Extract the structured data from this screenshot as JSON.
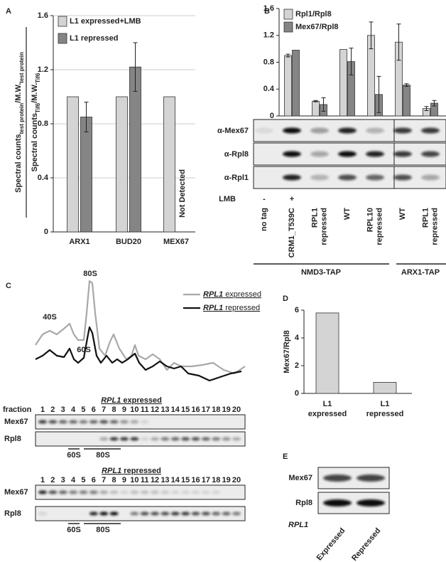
{
  "panel_labels": [
    "A",
    "B",
    "C",
    "D",
    "E"
  ],
  "chart_data": [
    {
      "type": "bar",
      "ylabel": {
        "numerator": [
          "Spectral counts",
          "test protein",
          "/M.W.",
          "test protein"
        ],
        "denominator": [
          "Spectral counts",
          "Tif6",
          "/M.W.",
          "Tif6"
        ]
      },
      "categories": [
        "ARX1",
        "BUD20",
        "MEX67"
      ],
      "series": [
        {
          "name": "L1 expressed+LMB",
          "color": "#d4d4d4",
          "values": [
            1,
            1,
            1
          ],
          "errors": [
            null,
            null,
            null
          ]
        },
        {
          "name": "L1 repressed",
          "color": "#858585",
          "values": [
            0.85,
            1.22,
            null
          ],
          "errors": [
            0.11,
            0.18,
            null
          ]
        }
      ],
      "annotation": "Not Detected",
      "ylim": [
        0,
        1.6
      ],
      "yticks": [
        0,
        0.4,
        0.8,
        1.2,
        1.6
      ],
      "grid": true
    },
    {
      "type": "bar",
      "categories": [
        "no tag",
        "CRM1_T539C",
        "RPL1 repressed",
        "WT",
        "RPL10 repressed",
        "WT",
        "RPL1 repressed"
      ],
      "series": [
        {
          "name": "Rpl1/Rpl8",
          "color": "#d4d4d4",
          "values": [
            null,
            0.9,
            0.22,
            0.99,
            1.2,
            1.1,
            0.11
          ],
          "errors": [
            null,
            0.02,
            0.01,
            null,
            0.2,
            0.27,
            0.03
          ]
        },
        {
          "name": "Mex67/Rpl8",
          "color": "#858585",
          "values": [
            null,
            0.98,
            0.17,
            0.81,
            0.32,
            0.46,
            0.19
          ],
          "errors": [
            null,
            null,
            0.1,
            0.2,
            0.27,
            0.02,
            0.04
          ]
        }
      ],
      "ylim": [
        0,
        1.6
      ],
      "yticks": [
        0,
        0.4,
        0.8,
        1.2,
        1.6
      ],
      "grid": false
    },
    {
      "type": "bar",
      "ylabel": "Mex67/Rpl8",
      "categories": [
        "L1 expressed",
        "L1 repressed"
      ],
      "values": [
        5.8,
        0.8
      ],
      "color": "#d4d4d4",
      "ylim": [
        0,
        6
      ],
      "yticks": [
        0,
        2,
        4,
        6
      ],
      "grid": false
    }
  ],
  "panel_b": {
    "rows": [
      "α-Mex67",
      "α-Rpl8",
      "α-Rpl1"
    ],
    "lmb_label": "LMB",
    "lmb": [
      "-",
      "+"
    ],
    "groups": [
      "NMD3-TAP",
      "ARX1-TAP"
    ]
  },
  "panel_c": {
    "peaks": [
      "40S",
      "60S",
      "80S"
    ],
    "legend": [
      {
        "gene": "RPL1",
        "state": "expressed"
      },
      {
        "gene": "RPL1",
        "state": "repressed"
      }
    ],
    "fraction_label": "fraction",
    "fractions": [
      1,
      2,
      3,
      4,
      5,
      6,
      7,
      8,
      9,
      10,
      11,
      12,
      13,
      14,
      15,
      16,
      17,
      18,
      19,
      20
    ],
    "gels": [
      {
        "gene": "RPL1",
        "state": "expressed",
        "rows": [
          "Mex67",
          "Rpl8"
        ],
        "markers": [
          "60S",
          "80S"
        ]
      },
      {
        "gene": "RPL1",
        "state": "repressed",
        "rows": [
          "Mex67",
          "Rpl8"
        ],
        "markers": [
          "60S",
          "80S"
        ]
      }
    ]
  },
  "panel_e": {
    "rows": [
      "Mex67",
      "Rpl8"
    ],
    "gene": "RPL1",
    "lanes": [
      "Expressed",
      "Repressed"
    ]
  }
}
